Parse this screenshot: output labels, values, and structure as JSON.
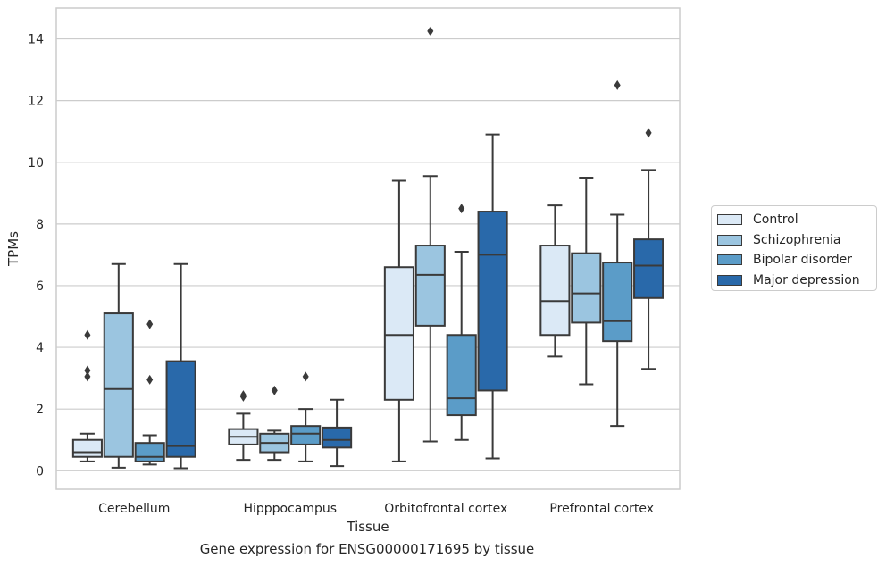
{
  "caption": "Gene expression for ENSG00000171695 by tissue",
  "chart_data": {
    "type": "box",
    "xlabel": "Tissue",
    "ylabel": "TPMs",
    "ylim": [
      -0.6,
      15
    ],
    "yticks": [
      0,
      2,
      4,
      6,
      8,
      10,
      12,
      14
    ],
    "grid": "horizontal",
    "legend_position": "right",
    "categories": [
      "Cerebellum",
      "Hipppocampus",
      "Orbitofrontal cortex",
      "Prefrontal cortex"
    ],
    "series": [
      {
        "name": "Control",
        "color": "#dbe9f6",
        "boxes": [
          {
            "whislo": 0.3,
            "q1": 0.45,
            "med": 0.6,
            "q3": 1.0,
            "whishi": 1.2,
            "fliers": [
              4.4,
              3.25,
              3.05
            ]
          },
          {
            "whislo": 0.35,
            "q1": 0.85,
            "med": 1.1,
            "q3": 1.35,
            "whishi": 1.85,
            "fliers": [
              2.45,
              2.4
            ]
          },
          {
            "whislo": 0.3,
            "q1": 2.3,
            "med": 4.4,
            "q3": 6.6,
            "whishi": 9.4,
            "fliers": []
          },
          {
            "whislo": 3.7,
            "q1": 4.4,
            "med": 5.5,
            "q3": 7.3,
            "whishi": 8.6,
            "fliers": []
          }
        ]
      },
      {
        "name": "Schizophrenia",
        "color": "#9bc5e0",
        "boxes": [
          {
            "whislo": 0.1,
            "q1": 0.45,
            "med": 2.65,
            "q3": 5.1,
            "whishi": 6.7,
            "fliers": []
          },
          {
            "whislo": 0.35,
            "q1": 0.6,
            "med": 0.9,
            "q3": 1.2,
            "whishi": 1.3,
            "fliers": [
              2.6
            ]
          },
          {
            "whislo": 0.95,
            "q1": 4.7,
            "med": 6.35,
            "q3": 7.3,
            "whishi": 9.55,
            "fliers": [
              14.25
            ]
          },
          {
            "whislo": 2.8,
            "q1": 4.8,
            "med": 5.75,
            "q3": 7.05,
            "whishi": 9.5,
            "fliers": []
          }
        ]
      },
      {
        "name": "Bipolar disorder",
        "color": "#5b9cc8",
        "boxes": [
          {
            "whislo": 0.2,
            "q1": 0.3,
            "med": 0.45,
            "q3": 0.9,
            "whishi": 1.15,
            "fliers": [
              4.75,
              2.95
            ]
          },
          {
            "whislo": 0.3,
            "q1": 0.85,
            "med": 1.2,
            "q3": 1.45,
            "whishi": 2.0,
            "fliers": [
              3.05
            ]
          },
          {
            "whislo": 1.0,
            "q1": 1.8,
            "med": 2.35,
            "q3": 4.4,
            "whishi": 7.1,
            "fliers": [
              8.5
            ]
          },
          {
            "whislo": 1.45,
            "q1": 4.2,
            "med": 4.85,
            "q3": 6.75,
            "whishi": 8.3,
            "fliers": [
              12.5
            ]
          }
        ]
      },
      {
        "name": "Major depression",
        "color": "#2969aa",
        "boxes": [
          {
            "whislo": 0.08,
            "q1": 0.45,
            "med": 0.8,
            "q3": 3.55,
            "whishi": 6.7,
            "fliers": []
          },
          {
            "whislo": 0.15,
            "q1": 0.75,
            "med": 1.0,
            "q3": 1.4,
            "whishi": 2.3,
            "fliers": []
          },
          {
            "whislo": 0.4,
            "q1": 2.6,
            "med": 7.0,
            "q3": 8.4,
            "whishi": 10.9,
            "fliers": []
          },
          {
            "whislo": 3.3,
            "q1": 5.6,
            "med": 6.65,
            "q3": 7.5,
            "whishi": 9.75,
            "fliers": [
              10.95
            ]
          }
        ]
      }
    ]
  }
}
